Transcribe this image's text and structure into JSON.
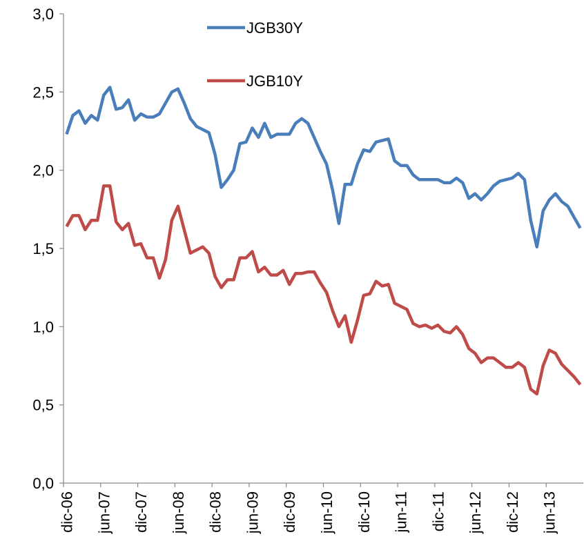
{
  "chart_data": {
    "type": "line",
    "categories": [
      "dic-06",
      null,
      null,
      null,
      null,
      null,
      "jun-07",
      null,
      null,
      null,
      null,
      null,
      "dic-07",
      null,
      null,
      null,
      null,
      null,
      "jun-08",
      null,
      null,
      null,
      null,
      null,
      "dic-08",
      null,
      null,
      null,
      null,
      null,
      "jun-09",
      null,
      null,
      null,
      null,
      null,
      "dic-09",
      null,
      null,
      null,
      null,
      null,
      "jun-10",
      null,
      null,
      null,
      null,
      null,
      "dic-10",
      null,
      null,
      null,
      null,
      null,
      "jun-11",
      null,
      null,
      null,
      null,
      null,
      "dic-11",
      null,
      null,
      null,
      null,
      null,
      "jun-12",
      null,
      null,
      null,
      null,
      null,
      "dic-12",
      null,
      null,
      null,
      null,
      null,
      "jun-13",
      null,
      null,
      null,
      null,
      null
    ],
    "series": [
      {
        "name": "JGB30Y",
        "color": "#4a7ebb",
        "values": [
          2.23,
          2.35,
          2.38,
          2.3,
          2.35,
          2.32,
          2.48,
          2.53,
          2.39,
          2.4,
          2.45,
          2.32,
          2.36,
          2.34,
          2.34,
          2.36,
          2.43,
          2.5,
          2.52,
          2.43,
          2.33,
          2.28,
          2.26,
          2.24,
          2.1,
          1.89,
          1.94,
          2.0,
          2.17,
          2.18,
          2.27,
          2.21,
          2.3,
          2.21,
          2.23,
          2.23,
          2.23,
          2.3,
          2.33,
          2.3,
          2.21,
          2.12,
          2.04,
          1.87,
          1.66,
          1.91,
          1.91,
          2.04,
          2.13,
          2.12,
          2.18,
          2.19,
          2.2,
          2.06,
          2.03,
          2.03,
          1.97,
          1.94,
          1.94,
          1.94,
          1.94,
          1.92,
          1.92,
          1.95,
          1.92,
          1.82,
          1.85,
          1.81,
          1.85,
          1.9,
          1.93,
          1.94,
          1.95,
          1.98,
          1.94,
          1.68,
          1.51,
          1.74,
          1.81,
          1.85,
          1.8,
          1.77,
          1.7,
          1.63
        ]
      },
      {
        "name": "JGB10Y",
        "color": "#be4b48",
        "values": [
          1.64,
          1.71,
          1.71,
          1.62,
          1.68,
          1.68,
          1.9,
          1.9,
          1.67,
          1.62,
          1.66,
          1.52,
          1.53,
          1.44,
          1.44,
          1.31,
          1.43,
          1.68,
          1.77,
          1.62,
          1.47,
          1.49,
          1.51,
          1.47,
          1.32,
          1.25,
          1.3,
          1.3,
          1.44,
          1.44,
          1.48,
          1.35,
          1.38,
          1.33,
          1.33,
          1.36,
          1.27,
          1.34,
          1.34,
          1.35,
          1.35,
          1.28,
          1.22,
          1.1,
          1.0,
          1.07,
          0.9,
          1.04,
          1.2,
          1.21,
          1.29,
          1.26,
          1.27,
          1.15,
          1.13,
          1.11,
          1.02,
          1.0,
          1.01,
          0.99,
          1.01,
          0.97,
          0.96,
          1.0,
          0.95,
          0.86,
          0.83,
          0.77,
          0.8,
          0.8,
          0.77,
          0.74,
          0.74,
          0.77,
          0.74,
          0.6,
          0.57,
          0.75,
          0.85,
          0.83,
          0.76,
          0.72,
          0.68,
          0.63
        ]
      }
    ],
    "ylim": [
      0,
      3
    ],
    "yticks": [
      {
        "value": 0,
        "label": "0,0"
      },
      {
        "value": 0.5,
        "label": "0,5"
      },
      {
        "value": 1,
        "label": "1,0"
      },
      {
        "value": 1.5,
        "label": "1,5"
      },
      {
        "value": 2,
        "label": "2,0"
      },
      {
        "value": 2.5,
        "label": "2,5"
      },
      {
        "value": 3,
        "label": "3,0"
      }
    ],
    "grid": false,
    "legend": "top"
  }
}
